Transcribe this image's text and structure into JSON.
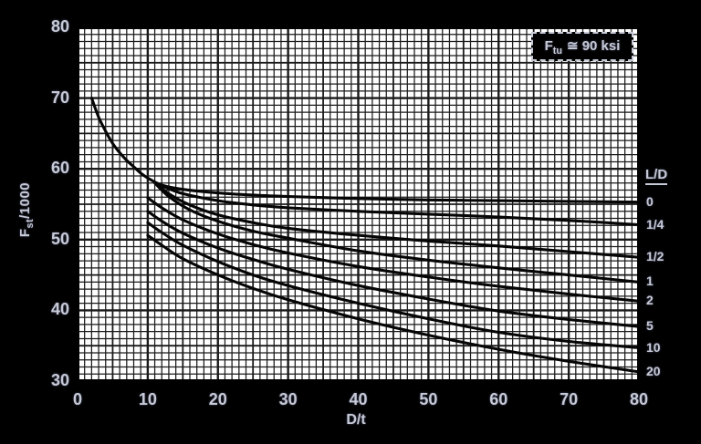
{
  "colors": {
    "background": "#000000",
    "plot_background": "#ffffff",
    "grid_line": "#1a1a1a",
    "curve": "#060606",
    "text": "#c6c9d6"
  },
  "figure": {
    "annotation": {
      "sym": "F",
      "sub": "tu",
      "rest": "≅ 90 ksi"
    },
    "y_axis_title": {
      "sym": "F",
      "sub": "st",
      "rest": "/1000"
    },
    "x_axis_title": "D/t",
    "legend_header": "L/D"
  },
  "chart_data": {
    "type": "line",
    "title": "Ftu ≅ 90 ksi",
    "xlabel": "D/t",
    "ylabel": "Fst/1000",
    "xlim": [
      0,
      80
    ],
    "ylim": [
      30,
      80
    ],
    "x_ticks": [
      0,
      10,
      20,
      30,
      40,
      50,
      60,
      70,
      80
    ],
    "y_ticks": [
      80,
      70,
      60,
      50,
      40,
      30
    ],
    "grid": {
      "minor_step": 1,
      "mid_step": 5,
      "major_step": 10,
      "on": true
    },
    "legend_position": "right-of-plot",
    "series": [
      {
        "name": "0",
        "points": [
          [
            2,
            70
          ],
          [
            3,
            67.3
          ],
          [
            4,
            65.3
          ],
          [
            5,
            63.6
          ],
          [
            6,
            62.3
          ],
          [
            7,
            61.2
          ],
          [
            8,
            60.3
          ],
          [
            9,
            59.4
          ],
          [
            10,
            58.7
          ],
          [
            12,
            57.7
          ],
          [
            15,
            57.1
          ],
          [
            20,
            56.6
          ],
          [
            25,
            56.3
          ],
          [
            30,
            56.1
          ],
          [
            40,
            55.8
          ],
          [
            50,
            55.6
          ],
          [
            60,
            55.5
          ],
          [
            70,
            55.4
          ],
          [
            80,
            55.3
          ]
        ]
      },
      {
        "name": "1/4",
        "points": [
          [
            12,
            57.6
          ],
          [
            15,
            56.5
          ],
          [
            20,
            55.5
          ],
          [
            25,
            54.9
          ],
          [
            30,
            54.5
          ],
          [
            40,
            54.0
          ],
          [
            50,
            53.6
          ],
          [
            60,
            53.2
          ],
          [
            70,
            52.7
          ],
          [
            80,
            52.1
          ]
        ]
      },
      {
        "name": "1/2",
        "points": [
          [
            11,
            58.1
          ],
          [
            13,
            56.5
          ],
          [
            16,
            54.9
          ],
          [
            20,
            53.5
          ],
          [
            25,
            52.4
          ],
          [
            30,
            51.6
          ],
          [
            40,
            50.6
          ],
          [
            50,
            49.8
          ],
          [
            60,
            49.1
          ],
          [
            70,
            48.3
          ],
          [
            80,
            47.5
          ]
        ]
      },
      {
        "name": "1",
        "points": [
          [
            11,
            58.0
          ],
          [
            13,
            56.1
          ],
          [
            16,
            54.2
          ],
          [
            20,
            52.6
          ],
          [
            25,
            51.2
          ],
          [
            30,
            50.2
          ],
          [
            40,
            48.4
          ],
          [
            50,
            47.1
          ],
          [
            60,
            46.0
          ],
          [
            70,
            45.0
          ],
          [
            80,
            44.0
          ]
        ]
      },
      {
        "name": "2",
        "points": [
          [
            10,
            55.9
          ],
          [
            12,
            54.5
          ],
          [
            15,
            52.8
          ],
          [
            20,
            50.8
          ],
          [
            25,
            49.3
          ],
          [
            30,
            48.1
          ],
          [
            40,
            46.2
          ],
          [
            50,
            44.7
          ],
          [
            60,
            43.4
          ],
          [
            70,
            42.3
          ],
          [
            80,
            41.3
          ]
        ]
      },
      {
        "name": "5",
        "points": [
          [
            10,
            54.0
          ],
          [
            12,
            52.6
          ],
          [
            15,
            50.9
          ],
          [
            20,
            48.8
          ],
          [
            25,
            47.2
          ],
          [
            30,
            45.8
          ],
          [
            40,
            43.5
          ],
          [
            50,
            41.6
          ],
          [
            60,
            39.9
          ],
          [
            70,
            38.7
          ],
          [
            80,
            37.7
          ]
        ]
      },
      {
        "name": "10",
        "points": [
          [
            10,
            52.4
          ],
          [
            12,
            51.0
          ],
          [
            15,
            49.2
          ],
          [
            20,
            46.9
          ],
          [
            25,
            45.0
          ],
          [
            30,
            43.5
          ],
          [
            40,
            41.0
          ],
          [
            50,
            38.8
          ],
          [
            60,
            36.9
          ],
          [
            70,
            35.6
          ],
          [
            80,
            34.7
          ]
        ]
      },
      {
        "name": "20",
        "points": [
          [
            10,
            50.6
          ],
          [
            12,
            49.2
          ],
          [
            15,
            47.3
          ],
          [
            20,
            45.0
          ],
          [
            25,
            43.1
          ],
          [
            30,
            41.5
          ],
          [
            40,
            38.8
          ],
          [
            50,
            36.5
          ],
          [
            60,
            34.5
          ],
          [
            70,
            32.8
          ],
          [
            80,
            31.3
          ]
        ]
      }
    ]
  }
}
